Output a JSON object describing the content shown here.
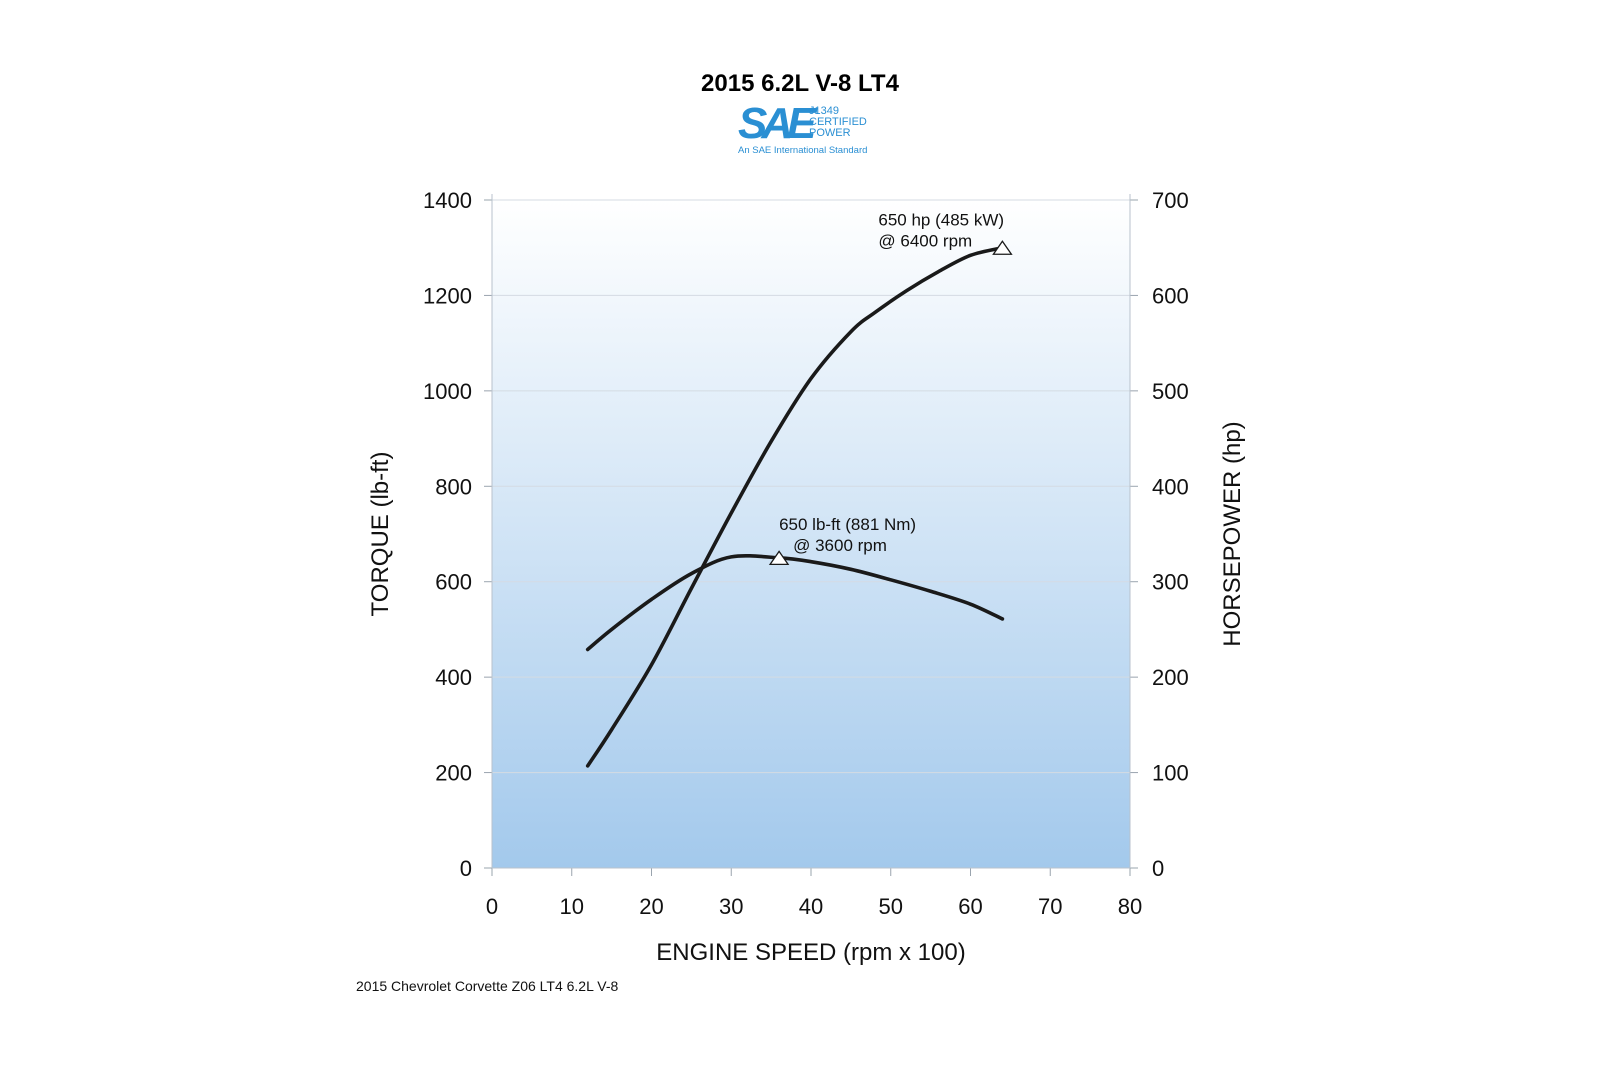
{
  "title": "2015 6.2L V-8 LT4",
  "logo": {
    "mark": "SAE",
    "lines": [
      "J1349",
      "CERTIFIED",
      "POWER"
    ],
    "subtitle": "An SAE International Standard"
  },
  "footnote": "2015 Chevrolet Corvette Z06 LT4 6.2L V-8",
  "colors": {
    "gradient_top": "#ffffff",
    "gradient_bottom": "#a3c9ec",
    "curve": "#1a1a1a",
    "grid": "#d4dbe3",
    "logo_blue": "#2a8fd3"
  },
  "chart_data": {
    "type": "line",
    "xlabel": "ENGINE SPEED (rpm x 100)",
    "ylabel_left": "TORQUE (lb-ft)",
    "ylabel_right": "HORSEPOWER (hp)",
    "xlim": [
      0,
      80
    ],
    "ylim_left": [
      0,
      1400
    ],
    "ylim_right": [
      0,
      700
    ],
    "x_ticks": [
      0,
      10,
      20,
      30,
      40,
      50,
      60,
      70,
      80
    ],
    "y_ticks_left": [
      0,
      200,
      400,
      600,
      800,
      1000,
      1200,
      1400
    ],
    "y_ticks_right": [
      0,
      100,
      200,
      300,
      400,
      500,
      600,
      700
    ],
    "grid": true,
    "series": [
      {
        "axis": "left",
        "x": [
          12,
          15,
          20,
          25,
          30,
          36,
          40,
          45,
          50,
          55,
          60,
          64
        ],
        "y": [
          458,
          500,
          563,
          617,
          652,
          650,
          642,
          626,
          604,
          580,
          553,
          522
        ]
      },
      {
        "axis": "right",
        "x": [
          12,
          15,
          20,
          25,
          30,
          35,
          40,
          45,
          48,
          52,
          56,
          60,
          64
        ],
        "y": [
          107,
          145,
          213,
          293,
          372,
          447,
          513,
          562,
          582,
          605,
          625,
          642,
          650
        ]
      }
    ],
    "annotations": [
      {
        "axis": "left",
        "x": 36,
        "y": 650,
        "lines": [
          "650 lb-ft (881 Nm)",
          "@ 3600 rpm"
        ]
      },
      {
        "axis": "right",
        "x": 64,
        "y": 650,
        "lines": [
          "650 hp (485 kW)",
          "@ 6400 rpm"
        ]
      }
    ]
  }
}
